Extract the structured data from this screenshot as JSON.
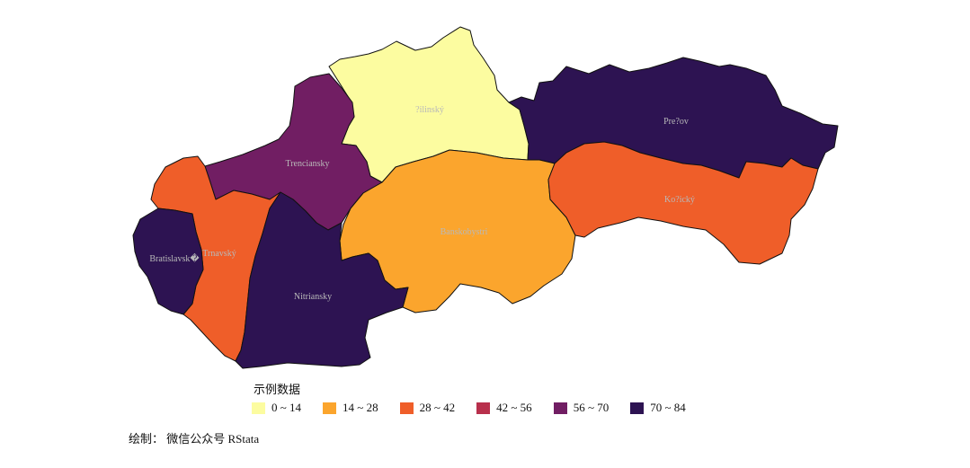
{
  "map": {
    "regions": [
      {
        "name": "Žilinský",
        "label": "?ilinský",
        "bin": 0
      },
      {
        "name": "Prešov",
        "label": "Pre?ov",
        "bin": 5
      },
      {
        "name": "Trenčianský",
        "label": "Trenciansky",
        "bin": 4
      },
      {
        "name": "Banskobystrický",
        "label": "Banskobystri",
        "bin": 1
      },
      {
        "name": "Košický",
        "label": "Ko?ický",
        "bin": 2
      },
      {
        "name": "Trnavský",
        "label": "Trnavský",
        "bin": 2
      },
      {
        "name": "Bratislavský",
        "label": "Bratislavsk�",
        "bin": 5
      },
      {
        "name": "Nitrianský",
        "label": "Nitriansky",
        "bin": 5
      }
    ]
  },
  "legend": {
    "title": "示例数据",
    "items": [
      {
        "label": "0 ~ 14",
        "color": "#fcfca0"
      },
      {
        "label": "14 ~ 28",
        "color": "#fba52d"
      },
      {
        "label": "28 ~ 42",
        "color": "#ef5e29"
      },
      {
        "label": "42 ~ 56",
        "color": "#b8304c"
      },
      {
        "label": "56 ~ 70",
        "color": "#711e63"
      },
      {
        "label": "70 ~ 84",
        "color": "#2d1352"
      }
    ]
  },
  "caption": "绘制：  微信公众号 RStata"
}
